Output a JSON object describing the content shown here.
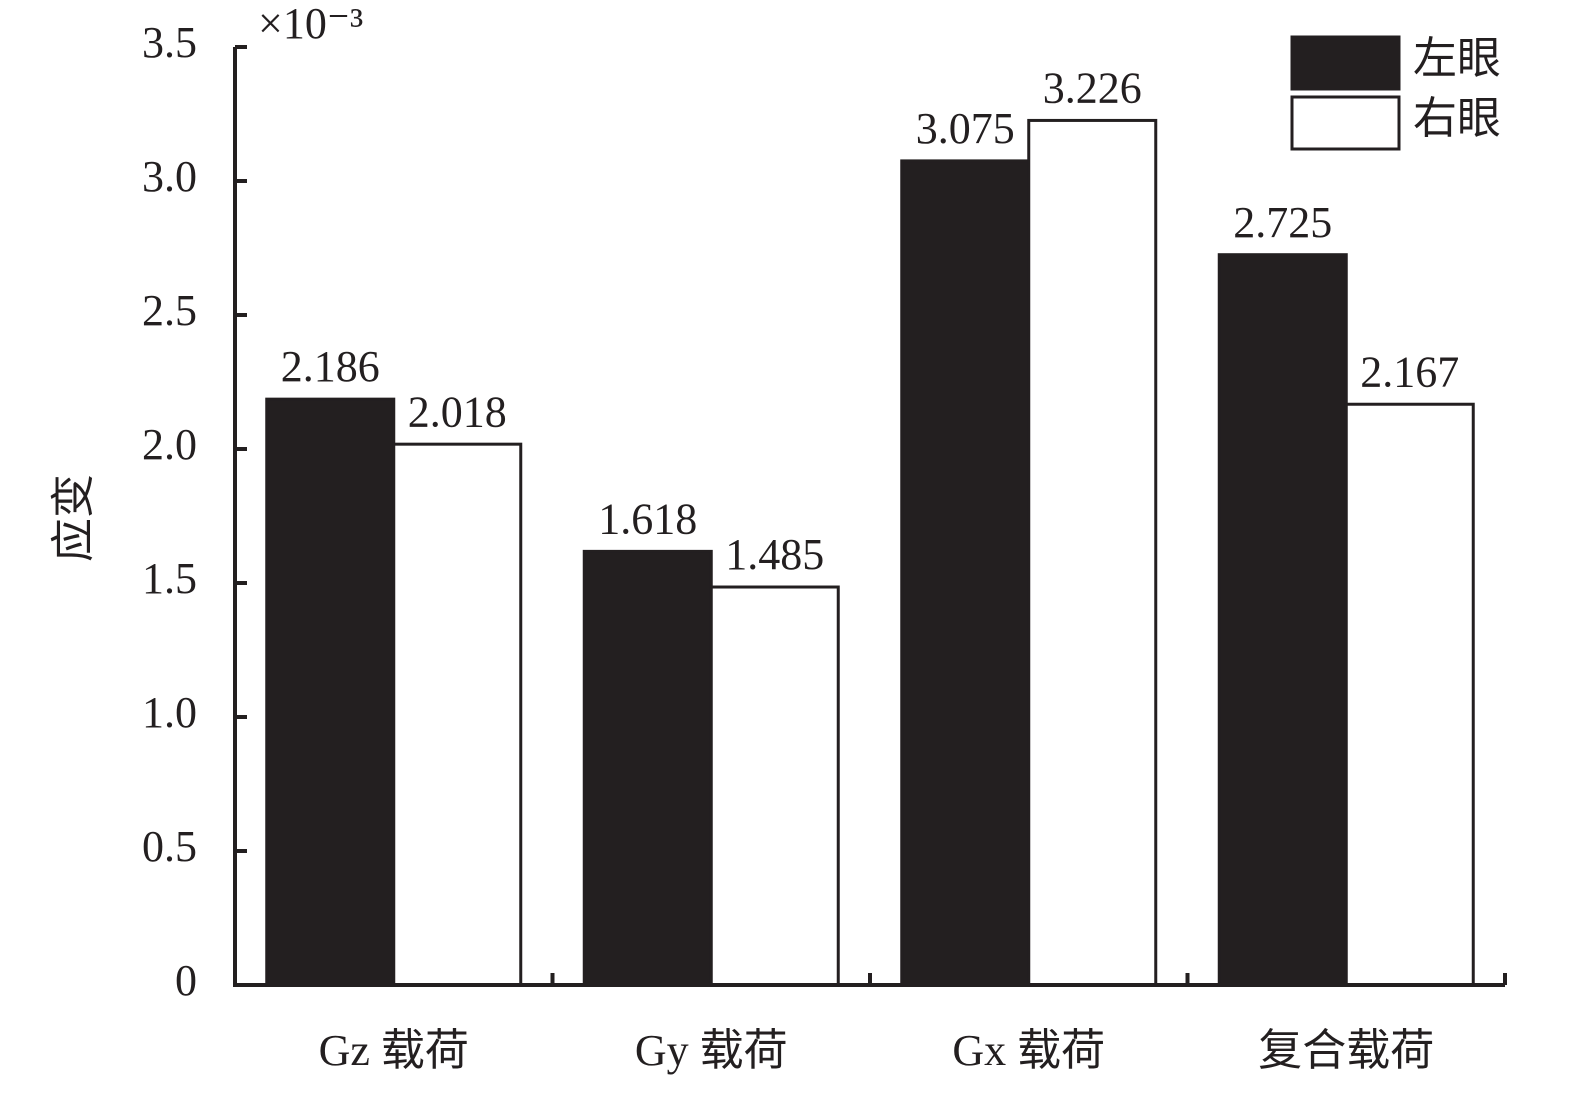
{
  "chart_data": {
    "type": "bar",
    "y_label": "应变",
    "y_multiplier": "×10⁻³",
    "categories": [
      "Gz 载荷",
      "Gy 载荷",
      "Gx 载荷",
      "复合载荷"
    ],
    "series": [
      {
        "name": "左眼",
        "color": "#231f20",
        "values": [
          2.186,
          1.618,
          3.075,
          2.725
        ]
      },
      {
        "name": "右眼",
        "color": "#ffffff",
        "values": [
          2.018,
          1.485,
          3.226,
          2.167
        ]
      }
    ],
    "ylim": [
      0,
      3.5
    ],
    "yticks": [
      0,
      0.5,
      {
        "value": 1,
        "label": "1.0"
      },
      1.5,
      {
        "value": 2,
        "label": "2.0"
      },
      2.5,
      {
        "value": 3,
        "label": "3.0"
      },
      3.5
    ],
    "legend": "upper right"
  }
}
